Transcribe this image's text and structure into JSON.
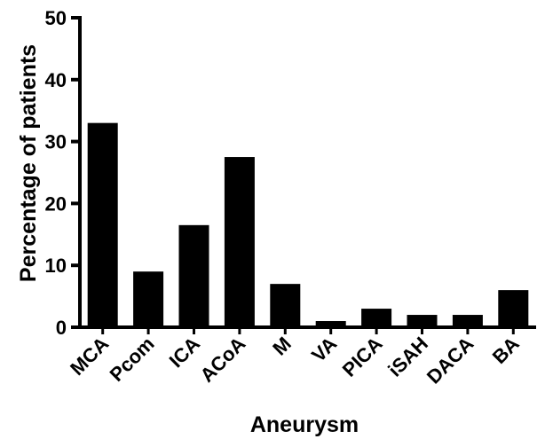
{
  "chart_data": {
    "type": "bar",
    "xlabel": "Aneurysm",
    "ylabel": "Percentage of patients",
    "ylim": [
      0,
      50
    ],
    "yticks": [
      0,
      10,
      20,
      30,
      40,
      50
    ],
    "ytick_labels": [
      "0",
      "10",
      "20",
      "30",
      "40",
      "50"
    ],
    "categories": [
      "MCA",
      "Pcom",
      "ICA",
      "ACoA",
      "M",
      "VA",
      "PICA",
      "iSAH",
      "DACA",
      "BA"
    ],
    "values": [
      33,
      9,
      16.5,
      27.5,
      7,
      1,
      3,
      2,
      2,
      6
    ],
    "bar_color": "#000000",
    "grid": false
  }
}
